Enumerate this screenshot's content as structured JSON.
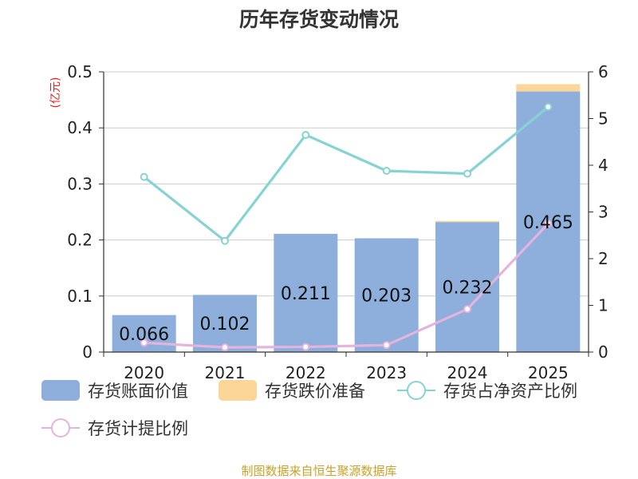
{
  "chart_data": {
    "type": "bar",
    "title": "历年存货变动情况",
    "unit_label": "(亿元)",
    "categories": [
      "2020",
      "2021",
      "2022",
      "2023",
      "2024",
      "2025"
    ],
    "y_left": {
      "ticks": [
        "0",
        "0.1",
        "0.2",
        "0.3",
        "0.4",
        "0.5"
      ],
      "ylim": [
        0,
        0.5
      ]
    },
    "y_right": {
      "ticks": [
        "0",
        "1",
        "2",
        "3",
        "4",
        "5",
        "6"
      ],
      "ylim": [
        0,
        6
      ]
    },
    "series": [
      {
        "name": "存货账面价值",
        "type": "bar",
        "axis": "left",
        "stack": "inv",
        "color": "#8eaedb",
        "values": [
          0.066,
          0.102,
          0.211,
          0.203,
          0.232,
          0.465
        ],
        "labels": [
          "0.066",
          "0.102",
          "0.211",
          "0.203",
          "0.232",
          "0.465"
        ]
      },
      {
        "name": "存货跌价准备",
        "type": "bar",
        "axis": "left",
        "stack": "inv",
        "color": "#fcd699",
        "values": [
          0,
          0,
          0,
          0,
          0.002,
          0.013
        ]
      },
      {
        "name": "存货占净资产比例",
        "type": "line",
        "axis": "right",
        "color": "#86d3d4",
        "values": [
          3.75,
          2.38,
          4.65,
          3.88,
          3.82,
          5.25
        ]
      },
      {
        "name": "存货计提比例",
        "type": "line",
        "axis": "right",
        "color": "#e4b4dc",
        "values": [
          0.2,
          0.1,
          0.11,
          0.15,
          0.92,
          2.75
        ]
      }
    ],
    "grid": true,
    "legend_position": "bottom"
  },
  "source": "制图数据来自恒生聚源数据库"
}
